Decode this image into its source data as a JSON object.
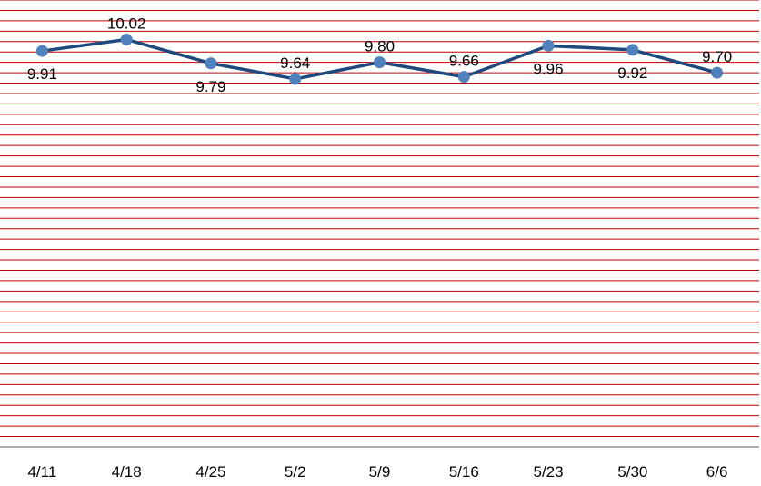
{
  "chart_data": {
    "type": "line",
    "categories": [
      "4/11",
      "4/18",
      "4/25",
      "5/2",
      "5/9",
      "5/16",
      "5/23",
      "5/30",
      "6/6"
    ],
    "series": [
      {
        "values": [
          9.91,
          10.02,
          9.79,
          9.64,
          9.8,
          9.66,
          9.96,
          9.92,
          9.7
        ],
        "labels": [
          "9.91",
          "10.02",
          "9.79",
          "9.64",
          "9.80",
          "9.66",
          "9.96",
          "9.92",
          "9.70"
        ],
        "label_position": [
          "below",
          "above",
          "below",
          "above",
          "above",
          "above",
          "below",
          "below",
          "above"
        ]
      }
    ],
    "title": "",
    "xlabel": "",
    "ylabel": "",
    "ylim": [
      6.1,
      10.4
    ],
    "grid": true,
    "legend": "none",
    "colors": {
      "line": "#1F497D",
      "marker": "#4F81BD",
      "gridline": "#C00000",
      "axis": "#808080"
    }
  }
}
